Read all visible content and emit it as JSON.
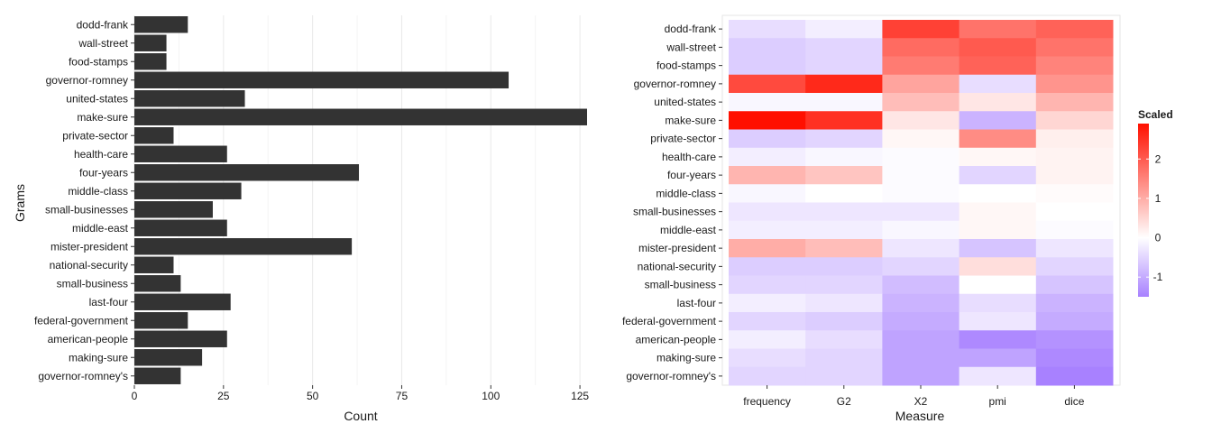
{
  "chart_data": [
    {
      "type": "bar",
      "orientation": "horizontal",
      "xlabel": "Count",
      "ylabel": "Grams",
      "xlim": [
        0,
        127
      ],
      "xticks": [
        "0",
        "25",
        "50",
        "75",
        "100",
        "125"
      ],
      "grid": true,
      "bar_color": "#333333",
      "categories": [
        "dodd-frank",
        "wall-street",
        "food-stamps",
        "governor-romney",
        "united-states",
        "make-sure",
        "private-sector",
        "health-care",
        "four-years",
        "middle-class",
        "small-businesses",
        "middle-east",
        "mister-president",
        "national-security",
        "small-business",
        "last-four",
        "federal-government",
        "american-people",
        "making-sure",
        "governor-romney's"
      ],
      "values": [
        15,
        9,
        9,
        105,
        31,
        127,
        11,
        26,
        63,
        30,
        22,
        26,
        61,
        11,
        13,
        27,
        15,
        26,
        19,
        13
      ]
    },
    {
      "type": "heatmap",
      "xlabel": "Measure",
      "ylabel": "",
      "x": [
        "frequency",
        "G2",
        "X2",
        "pmi",
        "dice"
      ],
      "y": [
        "dodd-frank",
        "wall-street",
        "food-stamps",
        "governor-romney",
        "united-states",
        "make-sure",
        "private-sector",
        "health-care",
        "four-years",
        "middle-class",
        "small-businesses",
        "middle-east",
        "mister-president",
        "national-security",
        "small-business",
        "last-four",
        "federal-government",
        "american-people",
        "making-sure",
        "governor-romney's"
      ],
      "values": [
        [
          -0.4,
          -0.2,
          2.3,
          1.7,
          1.9
        ],
        [
          -0.6,
          -0.5,
          1.8,
          2.0,
          1.7
        ],
        [
          -0.6,
          -0.5,
          1.6,
          1.9,
          1.5
        ],
        [
          2.2,
          2.6,
          1.1,
          -0.4,
          1.3
        ],
        [
          -0.1,
          -0.1,
          0.8,
          0.3,
          0.9
        ],
        [
          2.9,
          2.5,
          0.3,
          -0.9,
          0.5
        ],
        [
          -0.6,
          -0.5,
          0.1,
          1.4,
          0.2
        ],
        [
          -0.2,
          -0.1,
          -0.05,
          0.1,
          0.15
        ],
        [
          0.9,
          0.7,
          -0.05,
          -0.5,
          0.15
        ],
        [
          -0.1,
          0.0,
          -0.05,
          0.0,
          0.05
        ],
        [
          -0.3,
          -0.3,
          -0.3,
          0.1,
          0.0
        ],
        [
          -0.2,
          -0.2,
          -0.1,
          0.1,
          -0.05
        ],
        [
          1.0,
          0.8,
          -0.3,
          -0.7,
          -0.3
        ],
        [
          -0.6,
          -0.6,
          -0.5,
          0.4,
          -0.5
        ],
        [
          -0.5,
          -0.5,
          -0.8,
          0.0,
          -0.7
        ],
        [
          -0.2,
          -0.3,
          -0.9,
          -0.4,
          -0.9
        ],
        [
          -0.5,
          -0.6,
          -1.0,
          -0.3,
          -1.0
        ],
        [
          -0.2,
          -0.4,
          -1.1,
          -1.4,
          -1.3
        ],
        [
          -0.4,
          -0.5,
          -1.1,
          -1.1,
          -1.4
        ],
        [
          -0.5,
          -0.5,
          -1.1,
          -0.3,
          -1.5
        ]
      ],
      "legend": {
        "title": "Scaled",
        "placement": "right",
        "ticks": [
          "2",
          "1",
          "0",
          "-1"
        ],
        "low_color": "#a881ff",
        "mid_color": "#ffffff",
        "high_color": "#ff1000"
      }
    }
  ]
}
